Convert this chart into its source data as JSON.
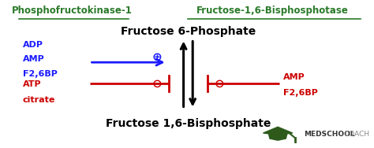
{
  "bg_color": "#ffffff",
  "title_left": "Phosphofructokinase-1",
  "title_right": "Fructose-1,6-Bisphosphotase",
  "label_top": "Fructose 6-Phosphate",
  "label_bottom": "Fructose 1,6-Bisphosphate",
  "activators_left": [
    "ADP",
    "AMP",
    "F2,6BP"
  ],
  "inhibitors_left": [
    "ATP",
    "citrate"
  ],
  "inhibitors_right": [
    "AMP",
    "F2,6BP"
  ],
  "green_color": "#2a7a2a",
  "blue_color": "#1a1aff",
  "red_color": "#cc0000",
  "black_color": "#000000",
  "logo_text_bold": "MEDSCHOOL",
  "logo_text_light": "COACH"
}
